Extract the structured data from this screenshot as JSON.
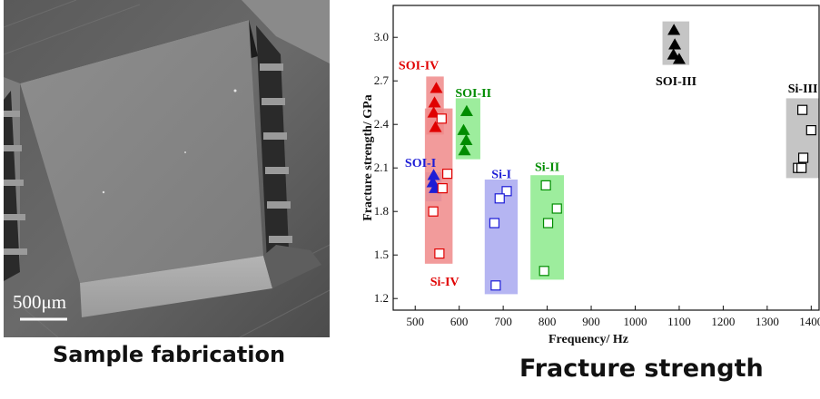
{
  "captions": {
    "left": "Sample fabrication",
    "right": "Fracture strength"
  },
  "micrograph": {
    "scale_bar_label": "500μm"
  },
  "chart_data": {
    "type": "scatter",
    "xlabel": "Frequency/ Hz",
    "ylabel": "Fracture strength/ GPa",
    "xlim": [
      450,
      1420
    ],
    "ylim": [
      1.12,
      3.22
    ],
    "xticks": [
      500,
      600,
      700,
      800,
      900,
      1000,
      1100,
      1200,
      1300,
      1400
    ],
    "yticks": [
      1.2,
      1.5,
      1.8,
      2.1,
      2.4,
      2.7,
      3.0
    ],
    "groups": [
      {
        "label": "SOI-IV",
        "marker": "triangle",
        "color": "#e00000",
        "box_color": "#f08a8a",
        "box": {
          "x": [
            525,
            565
          ],
          "y": [
            2.33,
            2.73
          ]
        },
        "label_pos": {
          "x": 508,
          "y": 2.81
        },
        "points": [
          {
            "x": 548,
            "y": 2.65
          },
          {
            "x": 544,
            "y": 2.55
          },
          {
            "x": 542,
            "y": 2.48
          },
          {
            "x": 546,
            "y": 2.38
          }
        ]
      },
      {
        "label": "SOI-II",
        "marker": "triangle",
        "color": "#008c00",
        "box_color": "#8cea8c",
        "box": {
          "x": [
            592,
            648
          ],
          "y": [
            2.16,
            2.58
          ]
        },
        "label_pos": {
          "x": 632,
          "y": 2.62
        },
        "points": [
          {
            "x": 617,
            "y": 2.49
          },
          {
            "x": 610,
            "y": 2.36
          },
          {
            "x": 616,
            "y": 2.29
          },
          {
            "x": 612,
            "y": 2.22
          }
        ]
      },
      {
        "label": "SOI-I",
        "marker": "triangle",
        "color": "#1c1cd6",
        "box_color": "#a8a8f0",
        "box": {
          "x": [
            524,
            560
          ],
          "y": [
            1.87,
            2.07
          ]
        },
        "label_pos": {
          "x": 512,
          "y": 2.14
        },
        "points": [
          {
            "x": 542,
            "y": 2.05
          },
          {
            "x": 540,
            "y": 2.0
          },
          {
            "x": 545,
            "y": 1.96
          }
        ]
      },
      {
        "label": "Si-IV",
        "marker": "square",
        "color": "#e00000",
        "box_color": "#f08a8a",
        "box": {
          "x": [
            522,
            585
          ],
          "y": [
            1.44,
            2.51
          ]
        },
        "label_pos": {
          "x": 567,
          "y": 1.32
        },
        "points": [
          {
            "x": 560,
            "y": 2.44
          },
          {
            "x": 573,
            "y": 2.06
          },
          {
            "x": 562,
            "y": 1.96
          },
          {
            "x": 541,
            "y": 1.8
          },
          {
            "x": 555,
            "y": 1.51
          }
        ]
      },
      {
        "label": "Si-I",
        "marker": "square",
        "color": "#1c1cd6",
        "box_color": "#a8a8f0",
        "box": {
          "x": [
            658,
            733
          ],
          "y": [
            1.23,
            2.02
          ]
        },
        "label_pos": {
          "x": 696,
          "y": 2.06
        },
        "points": [
          {
            "x": 708,
            "y": 1.94
          },
          {
            "x": 692,
            "y": 1.89
          },
          {
            "x": 680,
            "y": 1.72
          },
          {
            "x": 683,
            "y": 1.29
          }
        ]
      },
      {
        "label": "Si-II",
        "marker": "square",
        "color": "#008c00",
        "box_color": "#8cea8c",
        "box": {
          "x": [
            762,
            838
          ],
          "y": [
            1.33,
            2.05
          ]
        },
        "label_pos": {
          "x": 800,
          "y": 2.11
        },
        "points": [
          {
            "x": 797,
            "y": 1.98
          },
          {
            "x": 822,
            "y": 1.82
          },
          {
            "x": 802,
            "y": 1.72
          },
          {
            "x": 793,
            "y": 1.39
          }
        ]
      },
      {
        "label": "SOI-III",
        "marker": "triangle",
        "color": "#000000",
        "box_color": "#bbbbbb",
        "box": {
          "x": [
            1062,
            1123
          ],
          "y": [
            2.81,
            3.11
          ]
        },
        "label_pos": {
          "x": 1093,
          "y": 2.7
        },
        "points": [
          {
            "x": 1088,
            "y": 3.05
          },
          {
            "x": 1090,
            "y": 2.95
          },
          {
            "x": 1087,
            "y": 2.88
          },
          {
            "x": 1100,
            "y": 2.85
          }
        ]
      },
      {
        "label": "Si-III",
        "marker": "square",
        "color": "#000000",
        "box_color": "#bbbbbb",
        "box": {
          "x": [
            1343,
            1418
          ],
          "y": [
            2.03,
            2.58
          ]
        },
        "label_pos": {
          "x": 1381,
          "y": 2.65
        },
        "points": [
          {
            "x": 1380,
            "y": 2.5
          },
          {
            "x": 1400,
            "y": 2.36
          },
          {
            "x": 1382,
            "y": 2.17
          },
          {
            "x": 1370,
            "y": 2.1
          },
          {
            "x": 1378,
            "y": 2.1
          }
        ]
      }
    ]
  }
}
